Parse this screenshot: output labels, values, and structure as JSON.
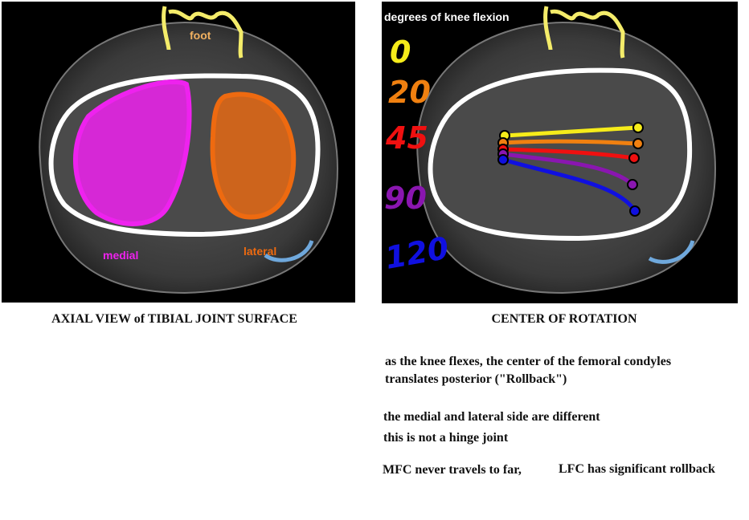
{
  "left_panel": {
    "labels": {
      "foot": "foot",
      "medial": "medial",
      "lateral": "lateral"
    },
    "caption": "AXIAL VIEW of TIBIAL JOINT SURFACE"
  },
  "right_panel": {
    "legend_title": "degrees of knee flexion",
    "angles": [
      "0",
      "20",
      "45",
      "90",
      "120"
    ],
    "caption": "CENTER OF ROTATION"
  },
  "notes": [
    "as the knee flexes, the center of the femoral condyles",
    "translates posterior (\"Rollback\")",
    "the medial and lateral side are different",
    "this is not a hinge joint",
    "MFC never travels to far,",
    "LFC has significant rollback"
  ]
}
